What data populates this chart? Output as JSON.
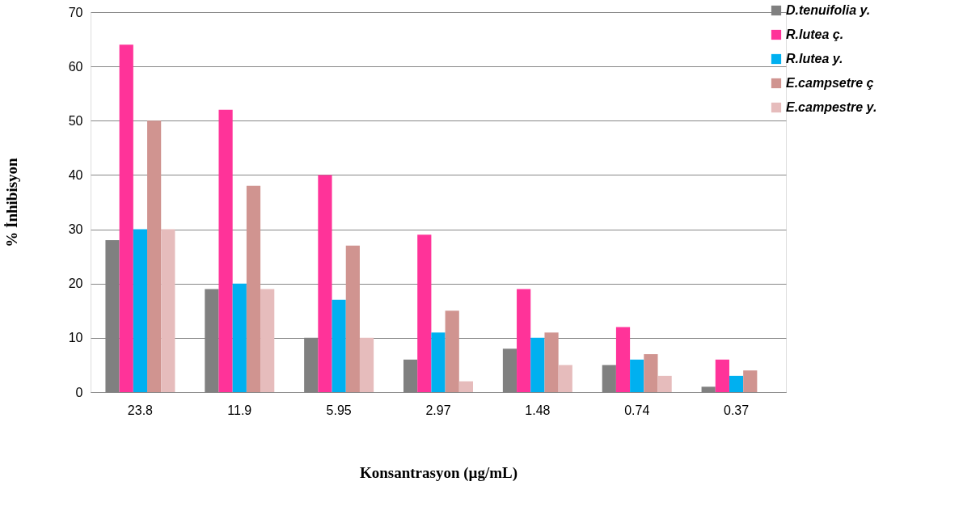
{
  "chart_data": {
    "type": "bar",
    "xlabel": "Konsantrasyon (µg/mL)",
    "ylabel": "% İnhibisyon",
    "categories": [
      "23.8",
      "11.9",
      "5.95",
      "2.97",
      "1.48",
      "0.74",
      "0.37"
    ],
    "series": [
      {
        "name": "D.tenuifolia y.",
        "color": "#808080",
        "values": [
          28,
          19,
          10,
          6,
          8,
          5,
          1
        ]
      },
      {
        "name": "R.lutea ç.",
        "color": "#ff3399",
        "values": [
          64,
          52,
          40,
          29,
          19,
          12,
          6
        ]
      },
      {
        "name": "R.lutea y.",
        "color": "#00b0f0",
        "values": [
          30,
          20,
          17,
          11,
          10,
          6,
          3
        ]
      },
      {
        "name": "E.campsetre ç",
        "color": "#d09490",
        "values": [
          50,
          38,
          27,
          15,
          11,
          7,
          4
        ]
      },
      {
        "name": "E.campestre y.",
        "color": "#e6bcbc",
        "values": [
          30,
          19,
          10,
          2,
          5,
          3,
          null
        ]
      }
    ],
    "ylim": [
      0,
      70
    ],
    "yticks": [
      0,
      10,
      20,
      30,
      40,
      50,
      60,
      70
    ],
    "grid": "y",
    "legend": "top right"
  }
}
